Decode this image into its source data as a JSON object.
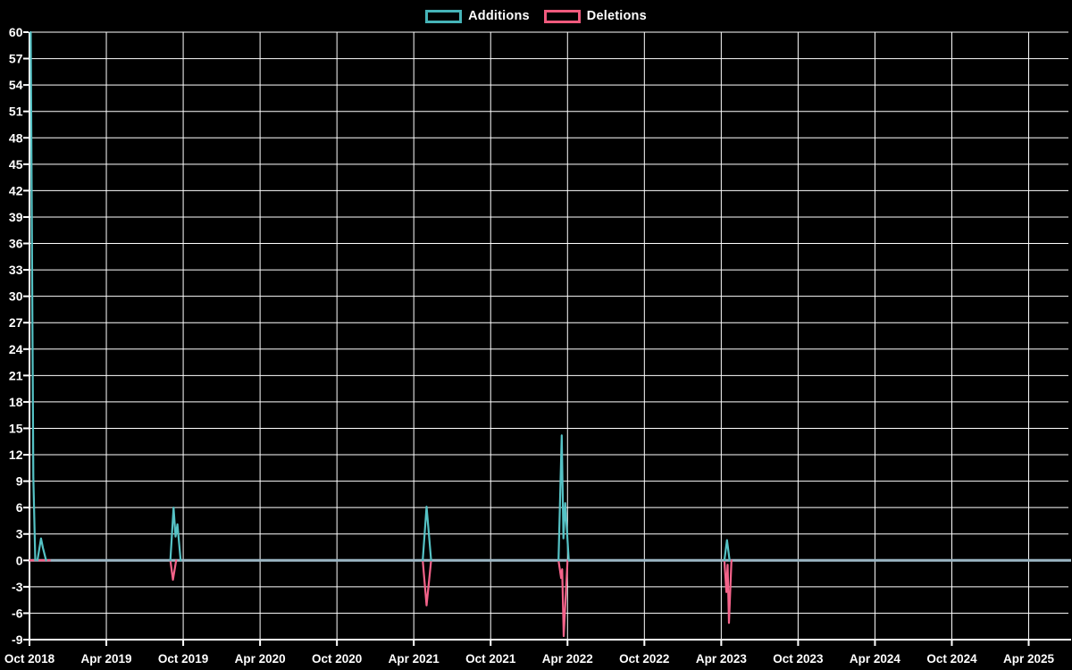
{
  "legend": {
    "items": [
      {
        "label": "Additions",
        "color": "#46b4b8"
      },
      {
        "label": "Deletions",
        "color": "#f05a7d"
      }
    ]
  },
  "colors": {
    "background": "#000000",
    "gridline": "#ffffff",
    "axis": "#ffffff",
    "tick_label": "#ffffff",
    "zero_line": "#9cb7c5",
    "additions_line": "#55c2c5",
    "deletions_line": "#f4638a"
  },
  "chart_data": {
    "type": "line",
    "title": "",
    "xlabel": "",
    "ylabel": "",
    "x_axis": {
      "tick_labels": [
        "Oct 2018",
        "Apr 2019",
        "Oct 2019",
        "Apr 2020",
        "Oct 2020",
        "Apr 2021",
        "Oct 2021",
        "Apr 2022",
        "Oct 2022",
        "Apr 2023",
        "Oct 2023",
        "Apr 2024",
        "Oct 2024",
        "Apr 2025"
      ],
      "tick_interval_months": 6
    },
    "y_axis": {
      "tick_labels": [
        "60",
        "57",
        "54",
        "51",
        "48",
        "45",
        "42",
        "39",
        "36",
        "33",
        "30",
        "27",
        "24",
        "21",
        "18",
        "15",
        "12",
        "9",
        "6",
        "3",
        "0",
        "-3",
        "-6",
        "-9"
      ],
      "min": -9,
      "max": 60,
      "step": 3
    },
    "grid": true,
    "legend_position": "top-center",
    "note": "series point x values are months since Oct 2018; segments start/end at baseline 0, line is flat at 0 elsewhere",
    "series": [
      {
        "name": "Additions",
        "color": "#55c2c5",
        "peaks_summary": [
          {
            "approx_date": "Oct 2018",
            "value": 60
          },
          {
            "approx_date": "Nov 2018",
            "value": 2.5
          },
          {
            "approx_date": "Sep 2019",
            "value": 6
          },
          {
            "approx_date": "Apr 2021",
            "value": 6
          },
          {
            "approx_date": "Mar 2022",
            "value": 14
          },
          {
            "approx_date": "Apr 2023",
            "value": 2.3
          }
        ],
        "segments": [
          [
            [
              0.1,
              60
            ],
            [
              0.3,
              9.5
            ],
            [
              0.45,
              0
            ]
          ],
          [
            [
              0.62,
              0
            ],
            [
              0.9,
              2.5
            ],
            [
              1.05,
              1.4
            ],
            [
              1.3,
              0
            ]
          ],
          [
            [
              11.0,
              0
            ],
            [
              11.25,
              6.0
            ],
            [
              11.4,
              2.7
            ],
            [
              11.55,
              4.1
            ],
            [
              11.8,
              0
            ]
          ],
          [
            [
              30.7,
              0
            ],
            [
              31.0,
              6.1
            ],
            [
              31.35,
              0
            ]
          ],
          [
            [
              41.3,
              0
            ],
            [
              41.55,
              14.2
            ],
            [
              41.68,
              2.5
            ],
            [
              41.82,
              6.5
            ],
            [
              42.1,
              0
            ]
          ],
          [
            [
              54.25,
              0
            ],
            [
              54.45,
              2.3
            ],
            [
              54.65,
              0
            ]
          ]
        ]
      },
      {
        "name": "Deletions",
        "color": "#f4638a",
        "peaks_summary": [
          {
            "approx_date": "Sep 2019",
            "value": -2.2
          },
          {
            "approx_date": "Apr 2021",
            "value": -5
          },
          {
            "approx_date": "Mar 2022",
            "value": -9
          },
          {
            "approx_date": "Apr 2023",
            "value": -7
          }
        ],
        "zero_run_visible": [
          [
            0.0,
            0
          ],
          [
            1.65,
            0
          ]
        ],
        "segments": [
          [
            [
              11.0,
              0
            ],
            [
              11.2,
              -2.2
            ],
            [
              11.45,
              0
            ]
          ],
          [
            [
              30.7,
              0
            ],
            [
              31.0,
              -5.1
            ],
            [
              31.35,
              0
            ]
          ],
          [
            [
              41.3,
              0
            ],
            [
              41.5,
              -2.0
            ],
            [
              41.58,
              -1.0
            ],
            [
              41.7,
              -8.6
            ],
            [
              42.0,
              0
            ]
          ],
          [
            [
              54.25,
              0
            ],
            [
              54.4,
              -3.6
            ],
            [
              54.5,
              -0.5
            ],
            [
              54.6,
              -7.1
            ],
            [
              54.8,
              0
            ]
          ]
        ]
      }
    ]
  }
}
